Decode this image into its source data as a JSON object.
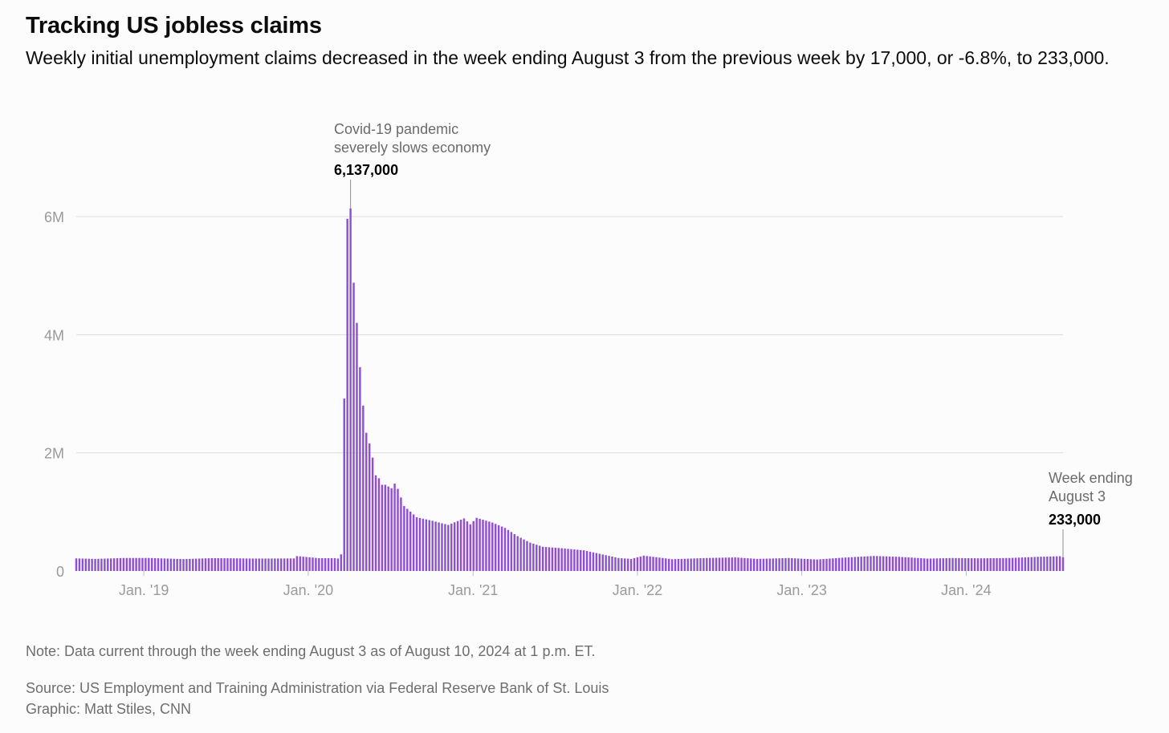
{
  "title": "Tracking US jobless claims",
  "subtitle": "Weekly initial unemployment claims decreased in the week ending August 3 from the previous week by 17,000, or -6.8%, to 233,000.",
  "note": "Note: Data current through the week ending August 3 as of August 10, 2024 at 1 p.m. ET.",
  "source": "Source: US Employment and Training Administration via Federal Reserve Bank of St. Louis",
  "credit": "Graphic: Matt Stiles, CNN",
  "colors": {
    "bar": "#8f4fd2",
    "grid": "#dcdcdc",
    "axis_text": "#9a9a9a",
    "annotation_text": "#6b6b6b",
    "annotation_value": "#000000"
  },
  "chart_data": {
    "type": "bar",
    "title": "Tracking US jobless claims",
    "subtitle": "Weekly initial unemployment claims decreased in the week ending August 3 from the previous week by 17,000, or -6.8%, to 233,000.",
    "xlabel": "",
    "ylabel": "",
    "start_week": "2018-08-04",
    "end_week": "2024-08-03",
    "frequency": "weekly",
    "ylim": [
      0,
      6000000
    ],
    "y_ticks": [
      0,
      2000000,
      4000000,
      6000000
    ],
    "y_tick_labels": [
      "0",
      "2M",
      "4M",
      "6M"
    ],
    "x_ticks": [
      "2019-01-01",
      "2020-01-01",
      "2021-01-01",
      "2022-01-01",
      "2023-01-01",
      "2024-01-01"
    ],
    "x_tick_labels": [
      "Jan. '19",
      "Jan. '20",
      "Jan. '21",
      "Jan. '22",
      "Jan. '23",
      "Jan. '24"
    ],
    "grid": true,
    "keypoints": [
      {
        "date": "2018-08-04",
        "value": 214000
      },
      {
        "date": "2018-09-15",
        "value": 205000
      },
      {
        "date": "2018-11-17",
        "value": 220000
      },
      {
        "date": "2019-01-12",
        "value": 221000
      },
      {
        "date": "2019-03-30",
        "value": 202000
      },
      {
        "date": "2019-06-01",
        "value": 218000
      },
      {
        "date": "2019-09-07",
        "value": 211000
      },
      {
        "date": "2019-11-30",
        "value": 213000
      },
      {
        "date": "2019-12-07",
        "value": 252000
      },
      {
        "date": "2020-01-25",
        "value": 217000
      },
      {
        "date": "2020-02-29",
        "value": 217000
      },
      {
        "date": "2020-03-07",
        "value": 211000
      },
      {
        "date": "2020-03-14",
        "value": 282000
      },
      {
        "date": "2020-03-21",
        "value": 2920000
      },
      {
        "date": "2020-03-28",
        "value": 5961000
      },
      {
        "date": "2020-04-04",
        "value": 6137000
      },
      {
        "date": "2020-04-11",
        "value": 4880000
      },
      {
        "date": "2020-04-18",
        "value": 4200000
      },
      {
        "date": "2020-04-25",
        "value": 3450000
      },
      {
        "date": "2020-05-02",
        "value": 2800000
      },
      {
        "date": "2020-05-09",
        "value": 2340000
      },
      {
        "date": "2020-05-16",
        "value": 2160000
      },
      {
        "date": "2020-05-23",
        "value": 1920000
      },
      {
        "date": "2020-05-30",
        "value": 1620000
      },
      {
        "date": "2020-06-06",
        "value": 1570000
      },
      {
        "date": "2020-06-13",
        "value": 1460000
      },
      {
        "date": "2020-06-20",
        "value": 1460000
      },
      {
        "date": "2020-06-27",
        "value": 1430000
      },
      {
        "date": "2020-07-04",
        "value": 1400000
      },
      {
        "date": "2020-07-11",
        "value": 1480000
      },
      {
        "date": "2020-07-18",
        "value": 1390000
      },
      {
        "date": "2020-08-01",
        "value": 1100000
      },
      {
        "date": "2020-08-29",
        "value": 910000
      },
      {
        "date": "2020-10-03",
        "value": 850000
      },
      {
        "date": "2020-11-07",
        "value": 780000
      },
      {
        "date": "2020-12-12",
        "value": 890000
      },
      {
        "date": "2020-12-26",
        "value": 790000
      },
      {
        "date": "2021-01-09",
        "value": 900000
      },
      {
        "date": "2021-02-13",
        "value": 820000
      },
      {
        "date": "2021-03-13",
        "value": 730000
      },
      {
        "date": "2021-04-10",
        "value": 590000
      },
      {
        "date": "2021-05-08",
        "value": 480000
      },
      {
        "date": "2021-06-05",
        "value": 410000
      },
      {
        "date": "2021-07-10",
        "value": 390000
      },
      {
        "date": "2021-08-07",
        "value": 370000
      },
      {
        "date": "2021-09-04",
        "value": 350000
      },
      {
        "date": "2021-10-16",
        "value": 280000
      },
      {
        "date": "2021-11-20",
        "value": 220000
      },
      {
        "date": "2021-12-18",
        "value": 205000
      },
      {
        "date": "2022-01-15",
        "value": 260000
      },
      {
        "date": "2022-03-19",
        "value": 200000
      },
      {
        "date": "2022-06-04",
        "value": 220000
      },
      {
        "date": "2022-08-06",
        "value": 230000
      },
      {
        "date": "2022-09-24",
        "value": 205000
      },
      {
        "date": "2022-12-03",
        "value": 220000
      },
      {
        "date": "2023-02-04",
        "value": 195000
      },
      {
        "date": "2023-04-01",
        "value": 225000
      },
      {
        "date": "2023-06-10",
        "value": 255000
      },
      {
        "date": "2023-08-05",
        "value": 240000
      },
      {
        "date": "2023-10-07",
        "value": 210000
      },
      {
        "date": "2023-12-02",
        "value": 220000
      },
      {
        "date": "2024-02-03",
        "value": 215000
      },
      {
        "date": "2024-04-06",
        "value": 220000
      },
      {
        "date": "2024-06-08",
        "value": 240000
      },
      {
        "date": "2024-07-27",
        "value": 250000
      },
      {
        "date": "2024-08-03",
        "value": 233000
      }
    ],
    "annotations": [
      {
        "date": "2020-04-04",
        "value": 6137000,
        "label_lines": [
          "Covid-19 pandemic",
          "severely slows economy"
        ],
        "value_label": "6,137,000"
      },
      {
        "date": "2024-08-03",
        "value": 233000,
        "label_lines": [
          "Week ending",
          "August 3"
        ],
        "value_label": "233,000"
      }
    ]
  }
}
